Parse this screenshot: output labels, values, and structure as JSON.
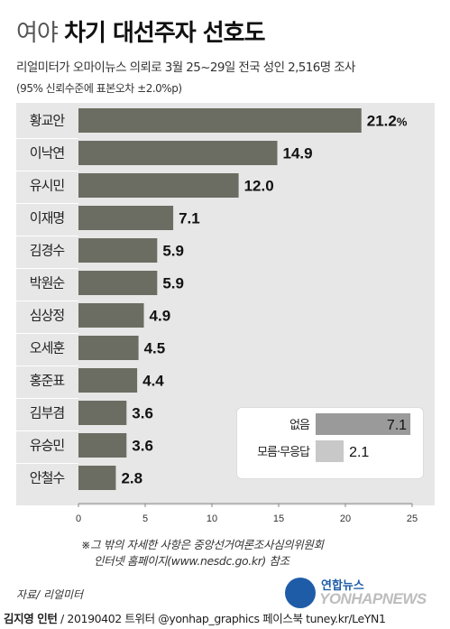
{
  "header": {
    "title_prefix": "여야",
    "title_main": "차기 대선주자 선호도",
    "subtitle": "리얼미터가 오마이뉴스 의뢰로 3월 25~29일 전국 성인 2,516명 조사",
    "note": "(95% 신뢰수준에 표본오차 ±2.0%p)"
  },
  "chart_data": {
    "type": "bar",
    "orientation": "horizontal",
    "categories": [
      "황교안",
      "이낙연",
      "유시민",
      "이재명",
      "김경수",
      "박원순",
      "심상정",
      "오세훈",
      "홍준표",
      "김부겸",
      "유승민",
      "안철수"
    ],
    "values": [
      21.2,
      14.9,
      12.0,
      7.1,
      5.9,
      5.9,
      4.9,
      4.5,
      4.4,
      3.6,
      3.6,
      2.8
    ],
    "value_labels": [
      "21.2",
      "14.9",
      "12.0",
      "7.1",
      "5.9",
      "5.9",
      "4.9",
      "4.5",
      "4.4",
      "3.6",
      "3.6",
      "2.8"
    ],
    "first_value_unit": "%",
    "xlim": [
      0,
      25
    ],
    "xticks": [
      0,
      5,
      10,
      15,
      20,
      25
    ],
    "xtick_labels": [
      "0",
      "5",
      "10",
      "15",
      "20",
      "25"
    ],
    "bar_color": "#6b6d62",
    "inset": {
      "categories": [
        "없음",
        "모름·무응답"
      ],
      "values": [
        7.1,
        2.1
      ],
      "value_labels": [
        "7.1",
        "2.1"
      ],
      "bar_colors": [
        "#9a9a9a",
        "#c8c8c8"
      ]
    }
  },
  "footnote": {
    "line1": "※그 밖의 자세한 사항은 중앙선거여론조사심의위원회",
    "line2": "인터넷 홈페이지(www.nesdc.go.kr) 참조"
  },
  "source": "자료/ 리얼미터",
  "credit": {
    "author": "김지영 인턴",
    "rest": " / 20190402  트위터 @yonhap_graphics  페이스북 tuney.kr/LeYN1"
  },
  "logo": {
    "kr": "연합뉴스",
    "en": "YONHAPNEWS"
  }
}
